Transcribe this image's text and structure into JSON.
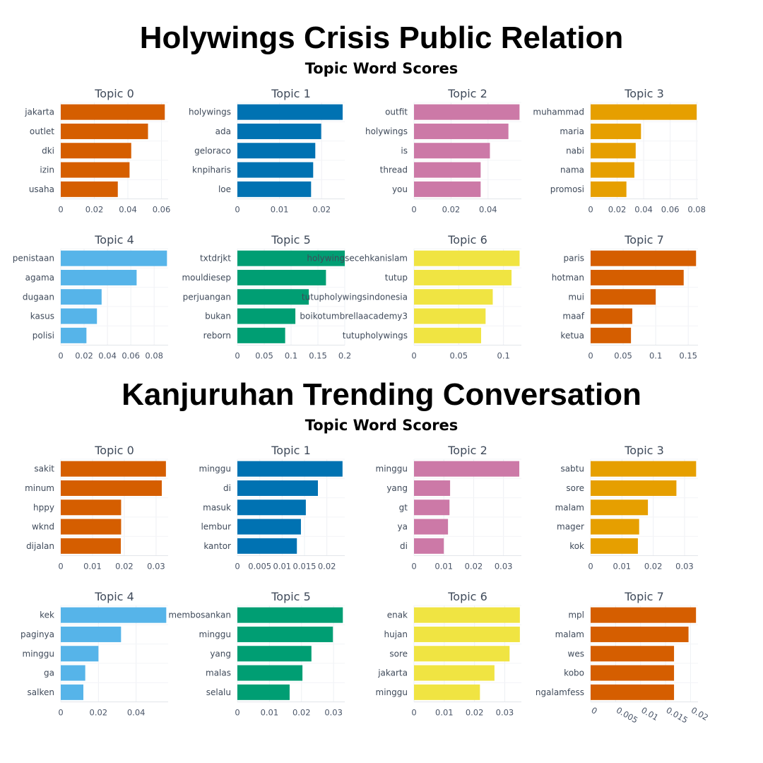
{
  "panels": [
    {
      "heading": "Holywings Crisis Public Relation",
      "subheading": "Topic Word Scores",
      "chart_data": [
        {
          "type": "bar",
          "orientation": "horizontal",
          "title": "Topic 0",
          "color": "#D55E00",
          "categories": [
            "jakarta",
            "outlet",
            "dki",
            "izin",
            "usaha"
          ],
          "values": [
            0.062,
            0.052,
            0.042,
            0.041,
            0.034
          ],
          "xlim": [
            0,
            0.064
          ],
          "ticks": [
            0,
            0.02,
            0.04,
            0.06
          ],
          "tick_labels": [
            "0",
            "0.02",
            "0.04",
            "0.06"
          ]
        },
        {
          "type": "bar",
          "orientation": "horizontal",
          "title": "Topic 1",
          "color": "#0072B2",
          "categories": [
            "holywings",
            "ada",
            "geloraco",
            "knpiharis",
            "loe"
          ],
          "values": [
            0.025,
            0.0199,
            0.0185,
            0.018,
            0.0175
          ],
          "xlim": [
            0,
            0.0255
          ],
          "ticks": [
            0,
            0.01,
            0.02
          ],
          "tick_labels": [
            "0",
            "0.01",
            "0.02"
          ]
        },
        {
          "type": "bar",
          "orientation": "horizontal",
          "title": "Topic 2",
          "color": "#CC79A7",
          "categories": [
            "outfit",
            "holywings",
            "is",
            "thread",
            "you"
          ],
          "values": [
            0.057,
            0.051,
            0.041,
            0.036,
            0.036
          ],
          "xlim": [
            0,
            0.058
          ],
          "ticks": [
            0,
            0.02,
            0.04
          ],
          "tick_labels": [
            "0",
            "0.02",
            "0.04"
          ]
        },
        {
          "type": "bar",
          "orientation": "horizontal",
          "title": "Topic 3",
          "color": "#E69F00",
          "categories": [
            "muhammad",
            "maria",
            "nabi",
            "nama",
            "promosi"
          ],
          "values": [
            0.08,
            0.038,
            0.034,
            0.033,
            0.027
          ],
          "xlim": [
            0,
            0.081
          ],
          "ticks": [
            0,
            0.02,
            0.04,
            0.06,
            0.08
          ],
          "tick_labels": [
            "0",
            "0.02",
            "0.04",
            "0.06",
            "0.08"
          ]
        },
        {
          "type": "bar",
          "orientation": "horizontal",
          "title": "Topic 4",
          "color": "#56B4E9",
          "categories": [
            "penistaan",
            "agama",
            "dugaan",
            "kasus",
            "polisi"
          ],
          "values": [
            0.091,
            0.065,
            0.035,
            0.031,
            0.022
          ],
          "xlim": [
            0,
            0.092
          ],
          "ticks": [
            0,
            0.02,
            0.04,
            0.06,
            0.08
          ],
          "tick_labels": [
            "0",
            "0.02",
            "0.04",
            "0.06",
            "0.08"
          ]
        },
        {
          "type": "bar",
          "orientation": "horizontal",
          "title": "Topic 5",
          "color": "#009E73",
          "categories": [
            "txtdrjkt",
            "mouldiesep",
            "perjuangan",
            "bukan",
            "reborn"
          ],
          "values": [
            0.2,
            0.165,
            0.133,
            0.108,
            0.089
          ],
          "xlim": [
            0,
            0.2
          ],
          "ticks": [
            0,
            0.05,
            0.1,
            0.15,
            0.2
          ],
          "tick_labels": [
            "0",
            "0.05",
            "0.1",
            "0.15",
            "0.2"
          ]
        },
        {
          "type": "bar",
          "orientation": "horizontal",
          "title": "Topic 6",
          "color": "#F0E442",
          "categories": [
            "holywingsecehkanislam",
            "tutup",
            "tutupholywingsindonesia",
            "boikotumbrellaacademy3",
            "tutupholywings"
          ],
          "values": [
            0.118,
            0.109,
            0.088,
            0.08,
            0.075
          ],
          "xlim": [
            0,
            0.12
          ],
          "ticks": [
            0,
            0.05,
            0.1
          ],
          "tick_labels": [
            "0",
            "0.05",
            "0.1"
          ]
        },
        {
          "type": "bar",
          "orientation": "horizontal",
          "title": "Topic 7",
          "color": "#D55E00",
          "categories": [
            "paris",
            "hotman",
            "mui",
            "maaf",
            "ketua"
          ],
          "values": [
            0.162,
            0.143,
            0.1,
            0.064,
            0.062
          ],
          "xlim": [
            0,
            0.165
          ],
          "ticks": [
            0,
            0.05,
            0.1,
            0.15
          ],
          "tick_labels": [
            "0",
            "0.05",
            "0.1",
            "0.15"
          ]
        }
      ]
    },
    {
      "heading": "Kanjuruhan Trending Conversation",
      "subheading": "Topic Word Scores",
      "chart_data": [
        {
          "type": "bar",
          "orientation": "horizontal",
          "title": "Topic 0",
          "color": "#D55E00",
          "categories": [
            "sakit",
            "minum",
            "hppy",
            "wknd",
            "dijalan"
          ],
          "values": [
            0.0331,
            0.0318,
            0.019,
            0.019,
            0.0189
          ],
          "xlim": [
            0,
            0.0338
          ],
          "ticks": [
            0,
            0.01,
            0.02,
            0.03
          ],
          "tick_labels": [
            "0",
            "0.01",
            "0.02",
            "0.03"
          ]
        },
        {
          "type": "bar",
          "orientation": "horizontal",
          "title": "Topic 1",
          "color": "#0072B2",
          "categories": [
            "minggu",
            "di",
            "masuk",
            "lembur",
            "kantor"
          ],
          "values": [
            0.0235,
            0.018,
            0.0153,
            0.0142,
            0.0133
          ],
          "xlim": [
            0,
            0.024
          ],
          "ticks": [
            0,
            0.005,
            0.01,
            0.015,
            0.02
          ],
          "tick_labels": [
            "0",
            "0.005",
            "0.01",
            "0.015",
            "0.02"
          ]
        },
        {
          "type": "bar",
          "orientation": "horizontal",
          "title": "Topic 2",
          "color": "#CC79A7",
          "categories": [
            "minggu",
            "yang",
            "gt",
            "ya",
            "di"
          ],
          "values": [
            0.0353,
            0.0121,
            0.0119,
            0.0114,
            0.01
          ],
          "xlim": [
            0,
            0.036
          ],
          "ticks": [
            0,
            0.01,
            0.02,
            0.03
          ],
          "tick_labels": [
            "0",
            "0.01",
            "0.02",
            "0.03"
          ]
        },
        {
          "type": "bar",
          "orientation": "horizontal",
          "title": "Topic 3",
          "color": "#E69F00",
          "categories": [
            "sabtu",
            "sore",
            "malam",
            "mager",
            "kok"
          ],
          "values": [
            0.0337,
            0.0274,
            0.0183,
            0.0155,
            0.0151
          ],
          "xlim": [
            0,
            0.0343
          ],
          "ticks": [
            0,
            0.01,
            0.02,
            0.03
          ],
          "tick_labels": [
            "0",
            "0.01",
            "0.02",
            "0.03"
          ]
        },
        {
          "type": "bar",
          "orientation": "horizontal",
          "title": "Topic 4",
          "color": "#56B4E9",
          "categories": [
            "kek",
            "paginya",
            "minggu",
            "ga",
            "salken"
          ],
          "values": [
            0.056,
            0.032,
            0.02,
            0.013,
            0.012
          ],
          "xlim": [
            0,
            0.057
          ],
          "ticks": [
            0,
            0.02,
            0.04
          ],
          "tick_labels": [
            "0",
            "0.02",
            "0.04"
          ]
        },
        {
          "type": "bar",
          "orientation": "horizontal",
          "title": "Topic 5",
          "color": "#009E73",
          "categories": [
            "membosankan",
            "minggu",
            "yang",
            "malas",
            "selalu"
          ],
          "values": [
            0.0329,
            0.0298,
            0.0231,
            0.0203,
            0.0163
          ],
          "xlim": [
            0,
            0.0335
          ],
          "ticks": [
            0,
            0.01,
            0.02,
            0.03
          ],
          "tick_labels": [
            "0",
            "0.01",
            "0.02",
            "0.03"
          ]
        },
        {
          "type": "bar",
          "orientation": "horizontal",
          "title": "Topic 6",
          "color": "#F0E442",
          "categories": [
            "enak",
            "hujan",
            "sore",
            "jakarta",
            "minggu"
          ],
          "values": [
            0.035,
            0.035,
            0.0316,
            0.0266,
            0.0218
          ],
          "xlim": [
            0,
            0.0355
          ],
          "ticks": [
            0,
            0.01,
            0.02,
            0.03
          ],
          "tick_labels": [
            "0",
            "0.01",
            "0.02",
            "0.03"
          ]
        },
        {
          "type": "bar",
          "orientation": "horizontal",
          "title": "Topic 7",
          "color": "#D55E00",
          "categories": [
            "mpl",
            "malam",
            "wes",
            "kobo",
            "ngalamfess"
          ],
          "values": [
            0.0211,
            0.0196,
            0.0167,
            0.0167,
            0.0167
          ],
          "xlim": [
            0,
            0.0215
          ],
          "ticks": [
            0,
            0.005,
            0.01,
            0.015,
            0.02
          ],
          "tick_labels": [
            "0",
            "0.005",
            "0.01",
            "0.015",
            "0.02"
          ],
          "rotated_ticks": true
        }
      ]
    }
  ]
}
